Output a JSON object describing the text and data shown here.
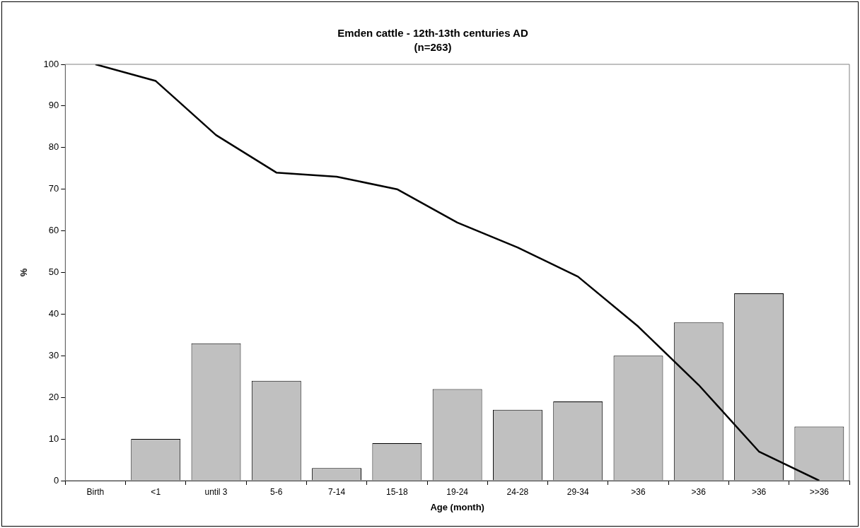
{
  "chart_data": {
    "type": "bar",
    "title": "Emden cattle - 12th-13th centuries AD",
    "subtitle": "(n=263)",
    "xlabel": "Age (month)",
    "ylabel": "%",
    "categories": [
      "Birth",
      "<1",
      "until 3",
      "5-6",
      "7-14",
      "15-18",
      "19-24",
      "24-28",
      "29-34",
      ">36",
      ">36",
      ">36",
      ">>36"
    ],
    "series": [
      {
        "color": "#c0c0c0",
        "values": [
          null,
          10,
          33,
          24,
          3,
          9,
          22,
          17,
          19,
          30,
          38,
          45,
          13
        ]
      },
      {
        "type": "line",
        "color": "#000000",
        "values": [
          100,
          96,
          83,
          74,
          73,
          70,
          62,
          56,
          49,
          37,
          23,
          7,
          0
        ]
      }
    ],
    "ylim": [
      0,
      100
    ],
    "yticks": [
      0,
      10,
      20,
      30,
      40,
      50,
      60,
      70,
      80,
      90,
      100
    ],
    "grid": false,
    "legend": false,
    "marker": "none",
    "line_style": "solid"
  }
}
